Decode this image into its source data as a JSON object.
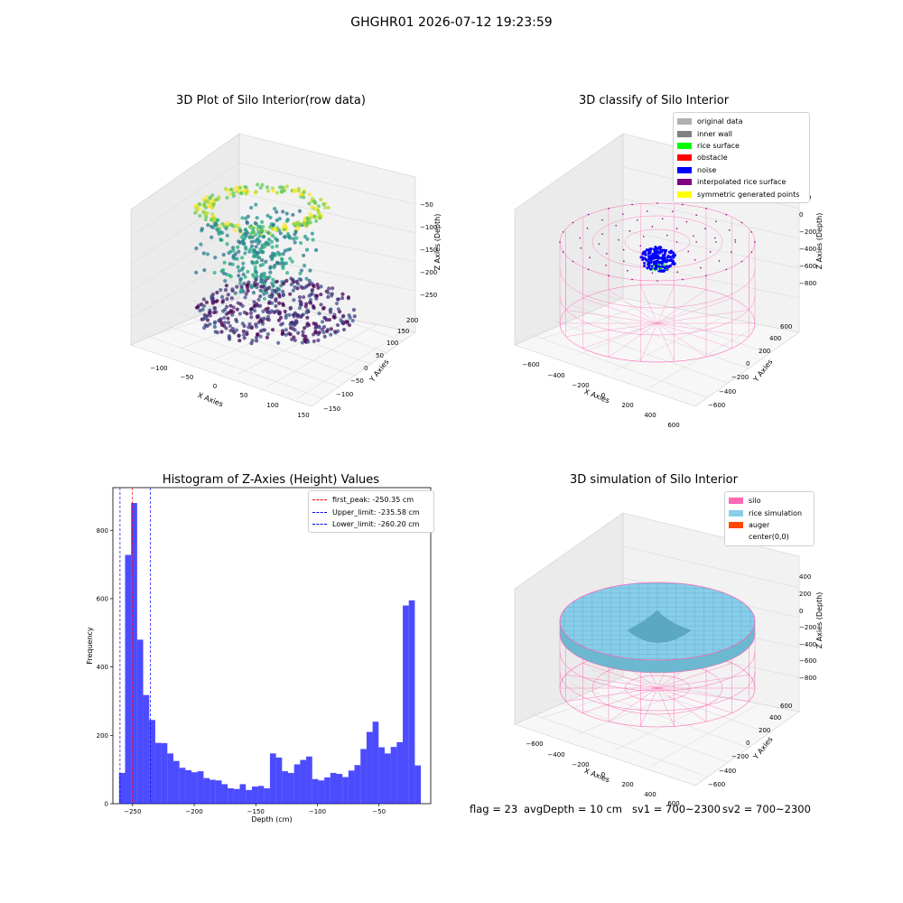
{
  "suptitle": "GHGHR01 2026-07-12 19:23:59",
  "panels": {
    "raw": {
      "title": "3D Plot of Silo Interior(row data)",
      "xlabel": "X Axies",
      "ylabel": "Y Axies",
      "zlabel": "Z Axies (Depth)",
      "xticks": [
        "−100",
        "−50",
        "0",
        "50",
        "100",
        "150"
      ],
      "yticks": [
        "−150",
        "−100",
        "−50",
        "0",
        "50",
        "100",
        "150",
        "200"
      ],
      "zticks": [
        "−50",
        "−100",
        "−150",
        "−200",
        "−250"
      ]
    },
    "classify": {
      "title": "3D classify of Silo Interior",
      "xlabel": "X Axies",
      "ylabel": "Y Axies",
      "zlabel": "Z Axies (Depth)",
      "xticks": [
        "−600",
        "−400",
        "−200",
        "0",
        "200",
        "400",
        "600"
      ],
      "yticks": [
        "−600",
        "−400",
        "−200",
        "0",
        "200",
        "400",
        "600"
      ],
      "zticks": [
        "200",
        "0",
        "−200",
        "−400",
        "−600",
        "−800"
      ],
      "legend": [
        {
          "label": "original data",
          "color": "#b0b0b0"
        },
        {
          "label": "inner wall",
          "color": "#808080"
        },
        {
          "label": "rice surface",
          "color": "#00ff00"
        },
        {
          "label": "obstacle",
          "color": "#ff0000"
        },
        {
          "label": "noise",
          "color": "#0000ff"
        },
        {
          "label": "interpolated rice surface",
          "color": "#800080"
        },
        {
          "label": "symmetric generated points",
          "color": "#ffff00"
        }
      ]
    },
    "simulation": {
      "title": "3D simulation of Silo Interior",
      "xlabel": "X Axies",
      "ylabel": "Y Axies",
      "zlabel": "Z Axies (Depth)",
      "xticks": [
        "−600",
        "−400",
        "−200",
        "0",
        "200",
        "400",
        "600"
      ],
      "yticks": [
        "−600",
        "−400",
        "−200",
        "0",
        "200",
        "400",
        "600"
      ],
      "zticks": [
        "400",
        "200",
        "0",
        "−200",
        "−400",
        "−600",
        "−800"
      ],
      "legend": [
        {
          "label": "silo",
          "color": "#ff69b4"
        },
        {
          "label": "rice simulation",
          "color": "#87ceeb"
        },
        {
          "label": "auger",
          "color": "#ff4500"
        },
        {
          "label": "center(0,0)",
          "color": "#ffffff"
        }
      ]
    }
  },
  "chart_data": {
    "type": "bar",
    "title": "Histogram of Z-Axies (Height) Values",
    "xlabel": "Depth (cm)",
    "ylabel": "Frequency",
    "xlim": [
      -266,
      -8
    ],
    "ylim": [
      0,
      925
    ],
    "xticks": [
      -250,
      -200,
      -150,
      -100,
      -50
    ],
    "xtick_labels": [
      "−250",
      "−200",
      "−150",
      "−100",
      "−50"
    ],
    "yticks": [
      0,
      200,
      400,
      600,
      800
    ],
    "bar_color": "#0000ff",
    "bin_start": -261,
    "bin_width": 4.9,
    "values": [
      90,
      728,
      880,
      480,
      318,
      245,
      178,
      177,
      147,
      125,
      105,
      98,
      92,
      95,
      75,
      70,
      68,
      57,
      45,
      43,
      57,
      40,
      50,
      52,
      45,
      147,
      135,
      95,
      90,
      115,
      128,
      138,
      72,
      68,
      77,
      90,
      87,
      78,
      97,
      113,
      160,
      210,
      240,
      165,
      147,
      166,
      180,
      580,
      595,
      112
    ],
    "lines": [
      {
        "label": "first_peak: -250.35 cm",
        "x": -250.35,
        "color": "#ff0000"
      },
      {
        "label": "Upper_limit: -235.58 cm",
        "x": -235.58,
        "color": "#0000ff"
      },
      {
        "label": "Lower_limit: -260.20 cm",
        "x": -260.2,
        "color": "#0000ff"
      }
    ]
  },
  "footer": {
    "flag": "flag = 23",
    "avg_depth": "avgDepth = 10 cm",
    "sv1": "sv1 = 700~2300",
    "sv2": "sv2 = 700~2300"
  }
}
